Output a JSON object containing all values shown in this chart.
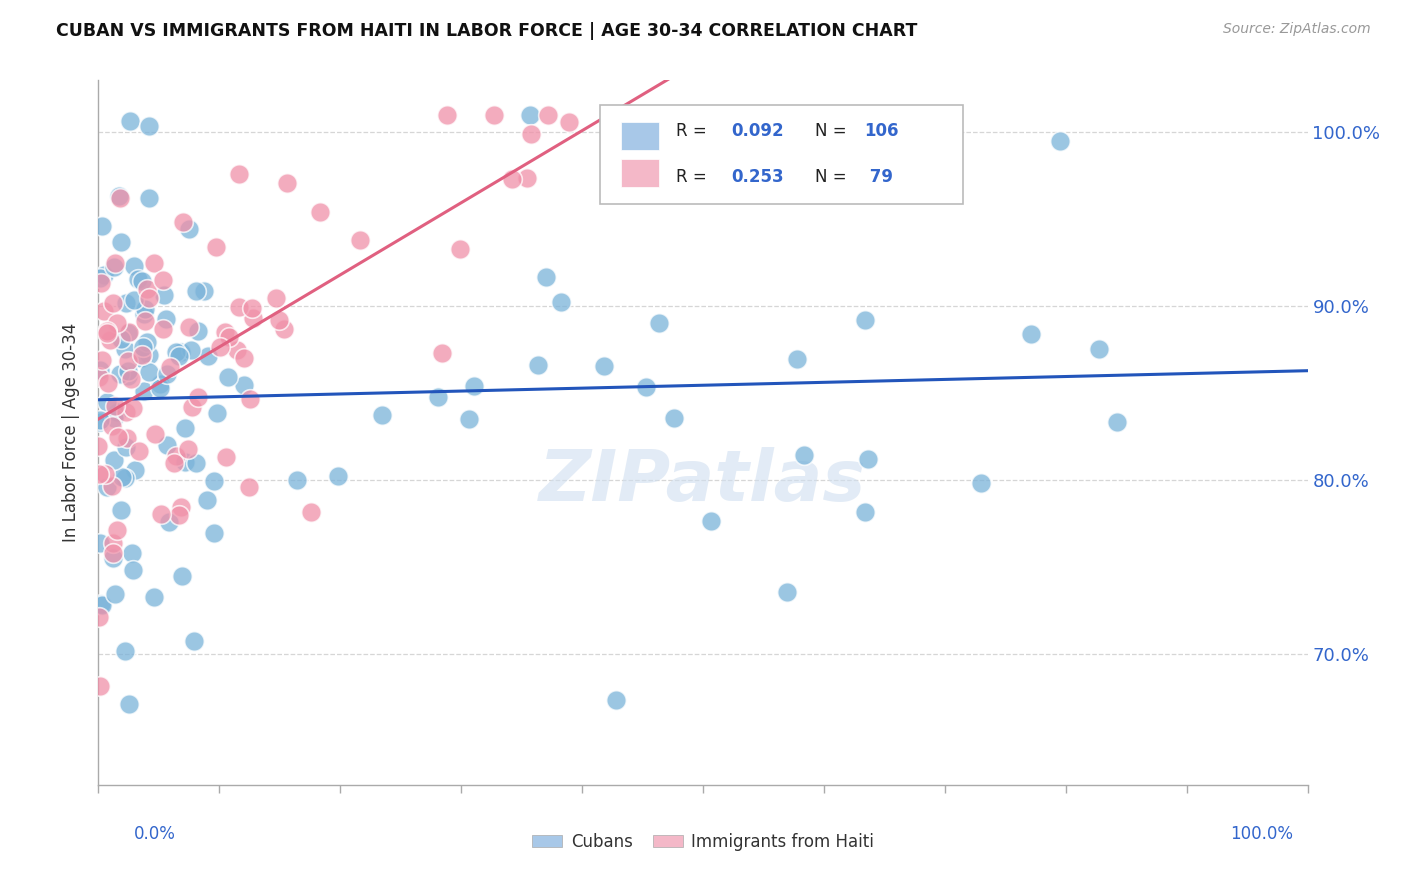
{
  "title": "CUBAN VS IMMIGRANTS FROM HAITI IN LABOR FORCE | AGE 30-34 CORRELATION CHART",
  "source": "Source: ZipAtlas.com",
  "ylabel": "In Labor Force | Age 30-34",
  "yticks": [
    "70.0%",
    "80.0%",
    "90.0%",
    "100.0%"
  ],
  "ytick_vals": [
    0.7,
    0.8,
    0.9,
    1.0
  ],
  "xlim": [
    0.0,
    1.0
  ],
  "ylim": [
    0.625,
    1.03
  ],
  "cuban_color": "#7ab3d9",
  "haiti_color": "#f090a8",
  "cuban_line_color": "#2255bb",
  "haiti_line_color": "#e06080",
  "cuban_R": 0.092,
  "cuban_N": 106,
  "haiti_R": 0.253,
  "haiti_N": 79,
  "background_color": "#ffffff",
  "grid_color": "#cccccc",
  "tick_color": "#3366cc",
  "watermark_color": "#d0dff0"
}
